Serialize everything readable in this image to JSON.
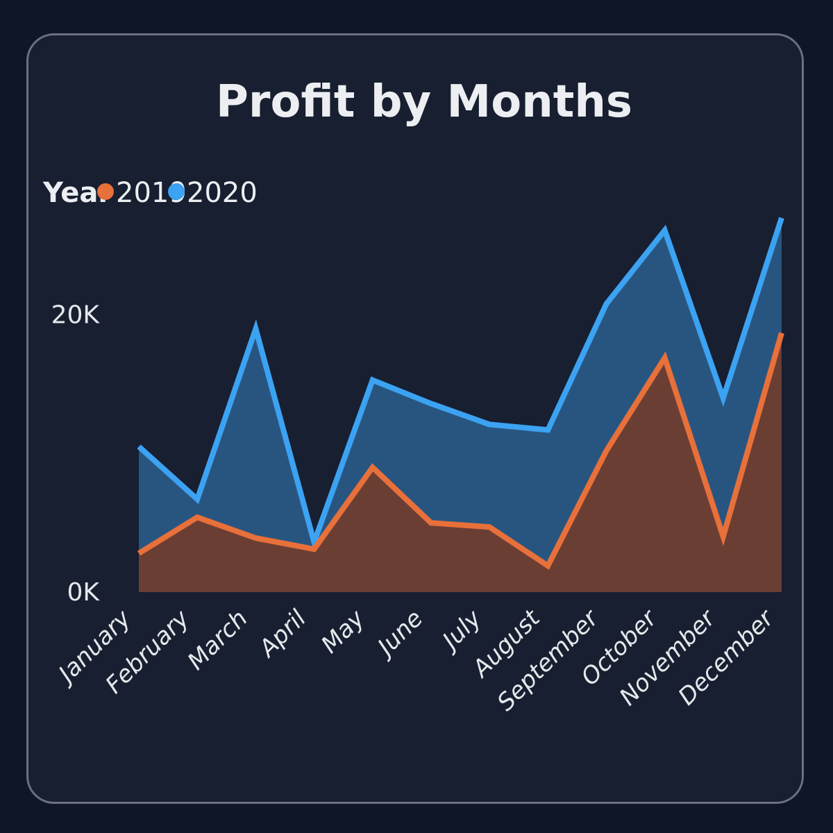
{
  "chart_data": {
    "type": "area",
    "title": "Profit by Months",
    "legend": {
      "title": "Year",
      "position": "top-left"
    },
    "categories": [
      "January",
      "February",
      "March",
      "April",
      "May",
      "June",
      "July",
      "August",
      "September",
      "October",
      "November",
      "December"
    ],
    "series": [
      {
        "name": "2019",
        "color": "#e8703a",
        "fill": "#6b3e33",
        "values": [
          2800,
          5400,
          3900,
          3100,
          9000,
          5000,
          4700,
          1900,
          10200,
          16900,
          4000,
          18700
        ]
      },
      {
        "name": "2020",
        "color": "#3ca2f2",
        "fill": "#285580",
        "values": [
          10500,
          6700,
          19000,
          3600,
          15300,
          13600,
          12100,
          11700,
          20800,
          26100,
          14000,
          27000
        ]
      }
    ],
    "ylim": [
      0,
      31000
    ],
    "yticks": [
      0,
      20000
    ],
    "ytick_labels": [
      "0K",
      "20K"
    ],
    "grid": false
  }
}
